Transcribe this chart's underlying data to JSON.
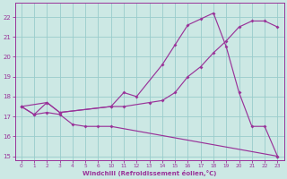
{
  "xlabel": "Windchill (Refroidissement éolien,°C)",
  "bg_color": "#cce8e4",
  "grid_color": "#99cccc",
  "line_color": "#993399",
  "xlim": [
    -0.5,
    20.5
  ],
  "ylim": [
    14.8,
    22.7
  ],
  "yticks": [
    15,
    16,
    17,
    18,
    19,
    20,
    21,
    22
  ],
  "xtick_labels": [
    "0",
    "1",
    "2",
    "3",
    "4",
    "5",
    "6",
    "10",
    "11",
    "12",
    "13",
    "14",
    "15",
    "16",
    "17",
    "18",
    "19",
    "20",
    "21",
    "22",
    "23"
  ],
  "xtick_pos": [
    0,
    1,
    2,
    3,
    4,
    5,
    6,
    7,
    8,
    9,
    10,
    11,
    12,
    13,
    14,
    15,
    16,
    17,
    18,
    19,
    20
  ],
  "line1_pos": [
    0,
    2,
    3,
    7,
    8,
    9,
    11,
    12,
    13,
    14,
    15,
    16,
    17,
    18,
    19,
    20
  ],
  "line1_y": [
    17.5,
    17.7,
    17.2,
    17.5,
    18.2,
    18.0,
    19.6,
    20.6,
    21.6,
    21.9,
    22.2,
    20.5,
    18.2,
    16.5,
    16.5,
    15.0
  ],
  "line2_pos": [
    0,
    1,
    2,
    3,
    7,
    8,
    10,
    11,
    12,
    13,
    14,
    15,
    16,
    17,
    18,
    19,
    20
  ],
  "line2_y": [
    17.5,
    17.1,
    17.7,
    17.2,
    17.5,
    17.5,
    17.7,
    17.8,
    18.2,
    19.0,
    19.5,
    20.2,
    20.8,
    21.5,
    21.8,
    21.8,
    21.5
  ],
  "line3_pos": [
    0,
    1,
    2,
    3,
    4,
    5,
    6,
    7,
    20
  ],
  "line3_y": [
    17.5,
    17.1,
    17.2,
    17.1,
    16.6,
    16.5,
    16.5,
    16.5,
    15.0
  ]
}
